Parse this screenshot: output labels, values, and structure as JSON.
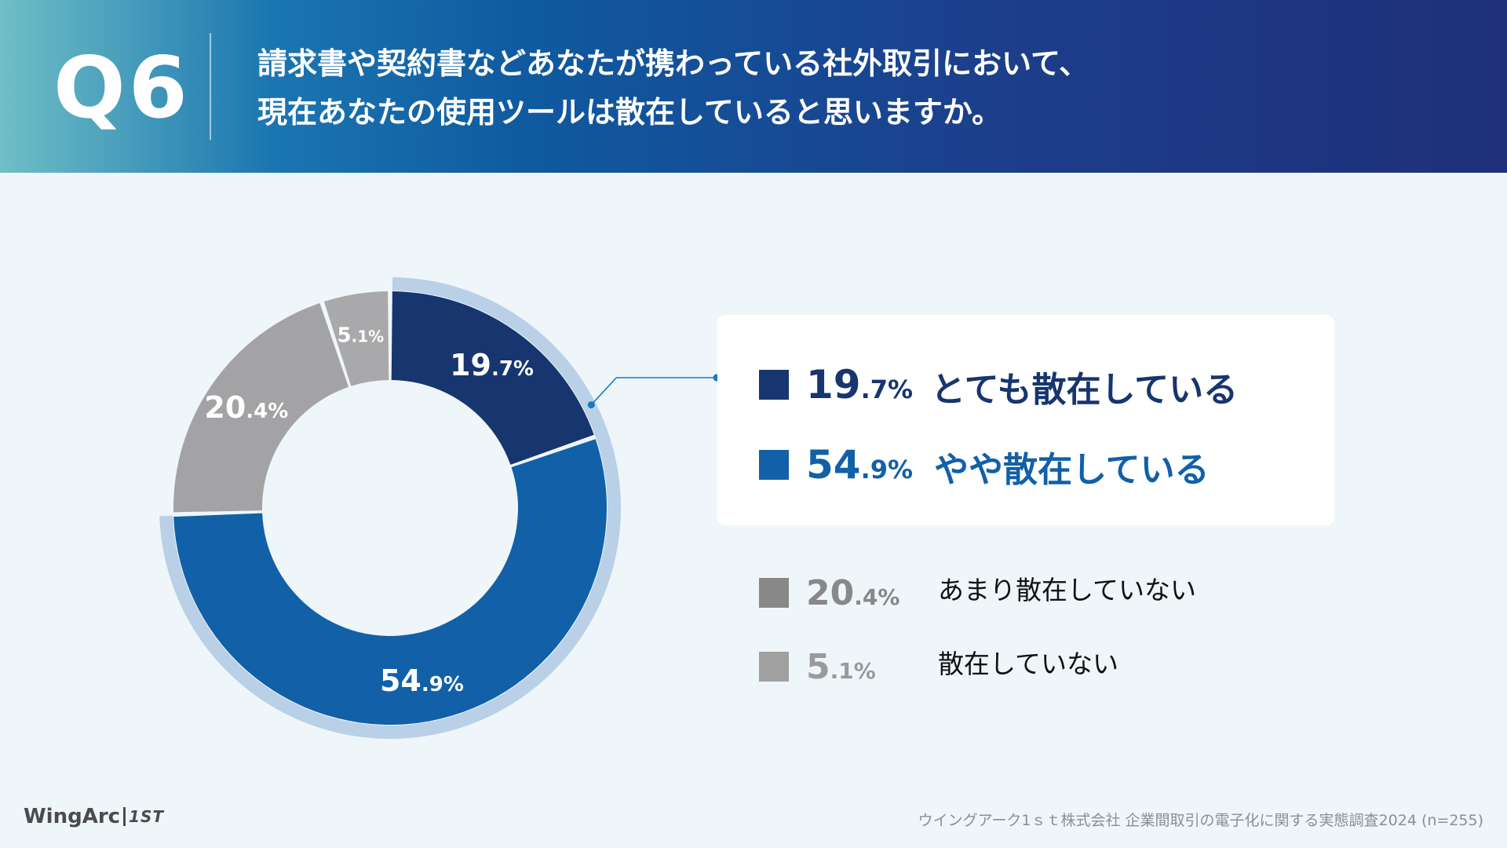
{
  "header": {
    "qnum": "Q6",
    "title_lines": [
      "請求書や契約書などあなたが携わっている社外取引において、",
      "現在あなたの使用ツールは散在していると思いますか。"
    ]
  },
  "chart_data": {
    "type": "pie",
    "style": "donut",
    "unit": "%",
    "categories": [
      "とても散在している",
      "やや散在している",
      "あまり散在していない",
      "散在していない"
    ],
    "values": [
      19.7,
      54.9,
      20.4,
      5.1
    ],
    "value_int": [
      "19",
      "54",
      "20",
      "5"
    ],
    "value_dec": [
      ".7%",
      ".9%",
      ".4%",
      ".1%"
    ],
    "colors": [
      "#17356e",
      "#1160a8",
      "#a3a3a6",
      "#a9a9ab"
    ],
    "highlight_ring_color": "#b9d0e6",
    "highlighted": [
      0,
      1
    ],
    "legend_colors": [
      "#17356e",
      "#1160a8",
      "#888888",
      "#a0a0a0"
    ]
  },
  "footer": {
    "logo_text": "WingArc",
    "logo_badge": "1ST",
    "source": "ウイングアーク1ｓｔ株式会社 企業間取引の電子化に関する実態調査2024 (n=255)"
  }
}
